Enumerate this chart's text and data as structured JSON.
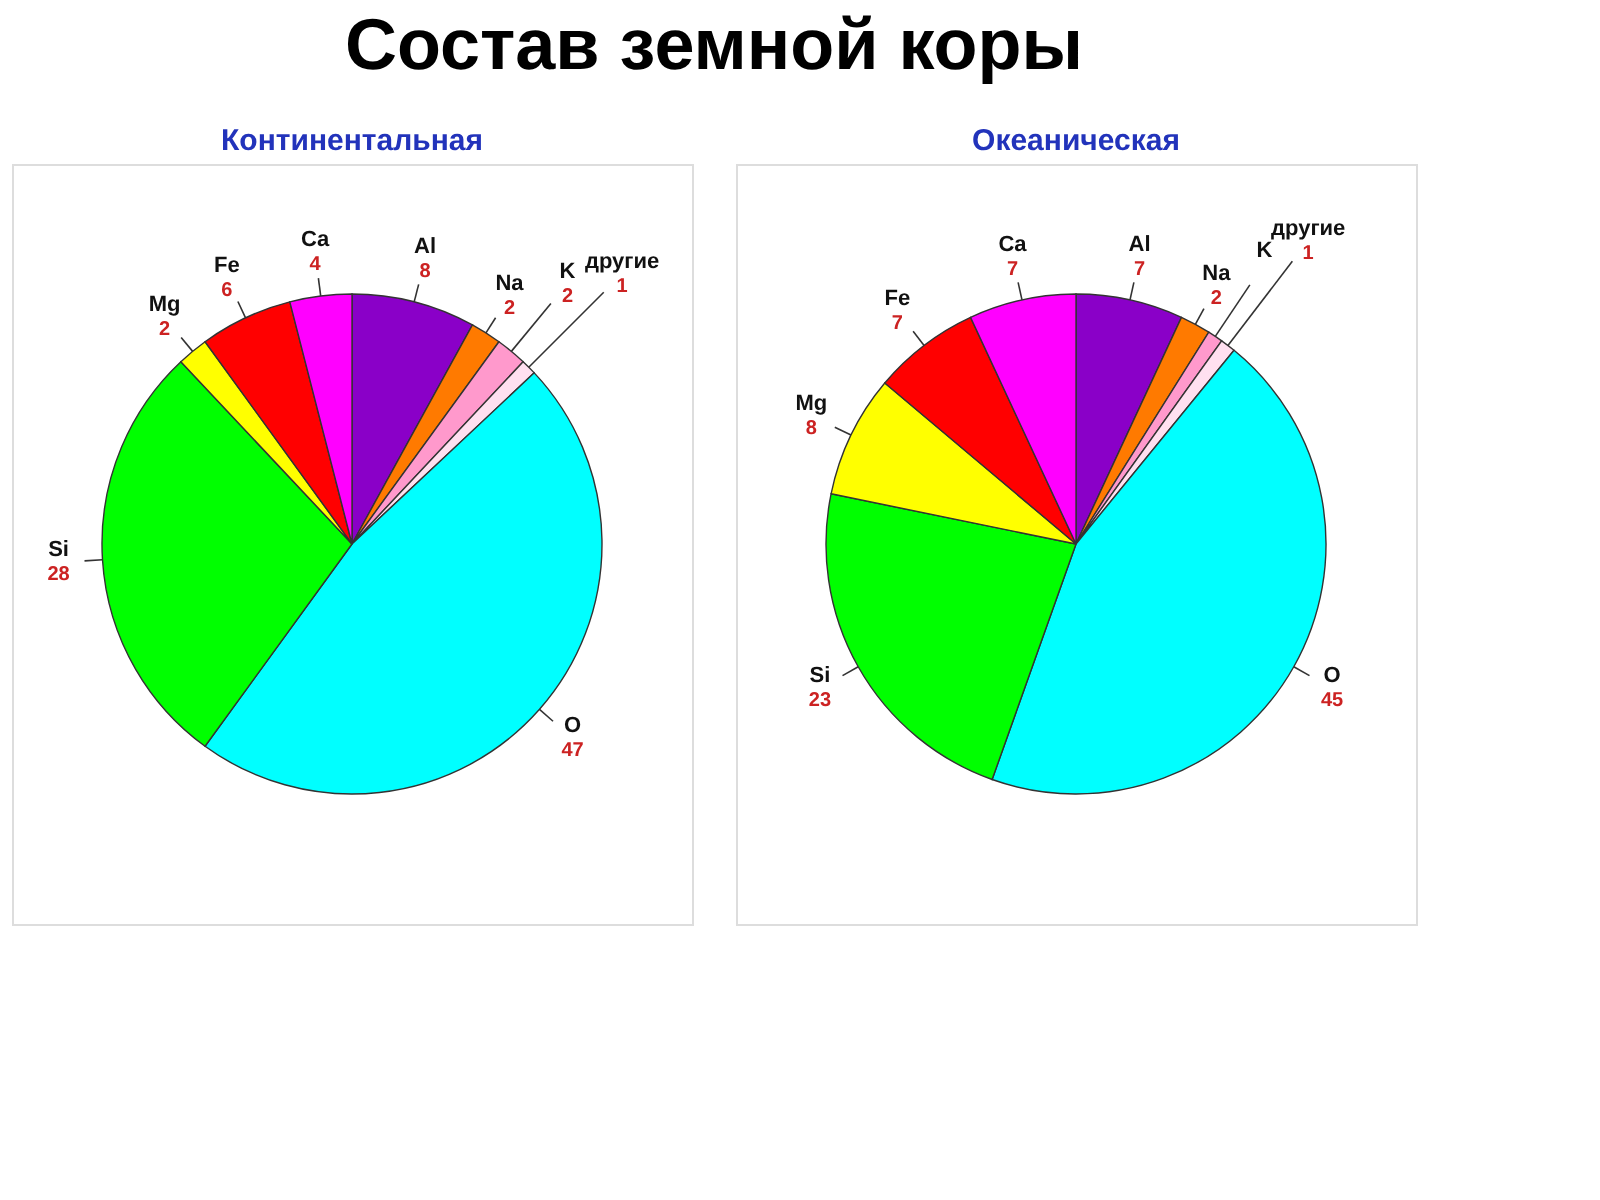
{
  "chart_data": [
    {
      "type": "pie",
      "title": "Состав земной коры",
      "subtitle": "Континентальная",
      "categories": [
        "Al",
        "Na",
        "K",
        "другие",
        "O",
        "Si",
        "Mg",
        "Fe",
        "Ca"
      ],
      "values": [
        8,
        2,
        2,
        1,
        47,
        28,
        2,
        6,
        4
      ],
      "colors": [
        "#8a00c8",
        "#ff7a00",
        "#ff99cc",
        "#ffe0f0",
        "#00ffff",
        "#00ff00",
        "#ffff00",
        "#ff0000",
        "#ff00ff"
      ],
      "data_labels": true
    },
    {
      "type": "pie",
      "subtitle": "Океаническая",
      "categories": [
        "Al",
        "Na",
        "K",
        "другие",
        "O",
        "Si",
        "Mg",
        "Fe",
        "Ca"
      ],
      "values": [
        7,
        2,
        1,
        1,
        45,
        23,
        8,
        7,
        7
      ],
      "value_labels": [
        "7",
        "2",
        null,
        "1",
        "45",
        "23",
        "8",
        "7",
        "7"
      ],
      "colors": [
        "#8a00c8",
        "#ff7a00",
        "#ff99cc",
        "#ffe0f0",
        "#00ffff",
        "#00ff00",
        "#ffff00",
        "#ff0000",
        "#ff00ff"
      ]
    }
  ]
}
